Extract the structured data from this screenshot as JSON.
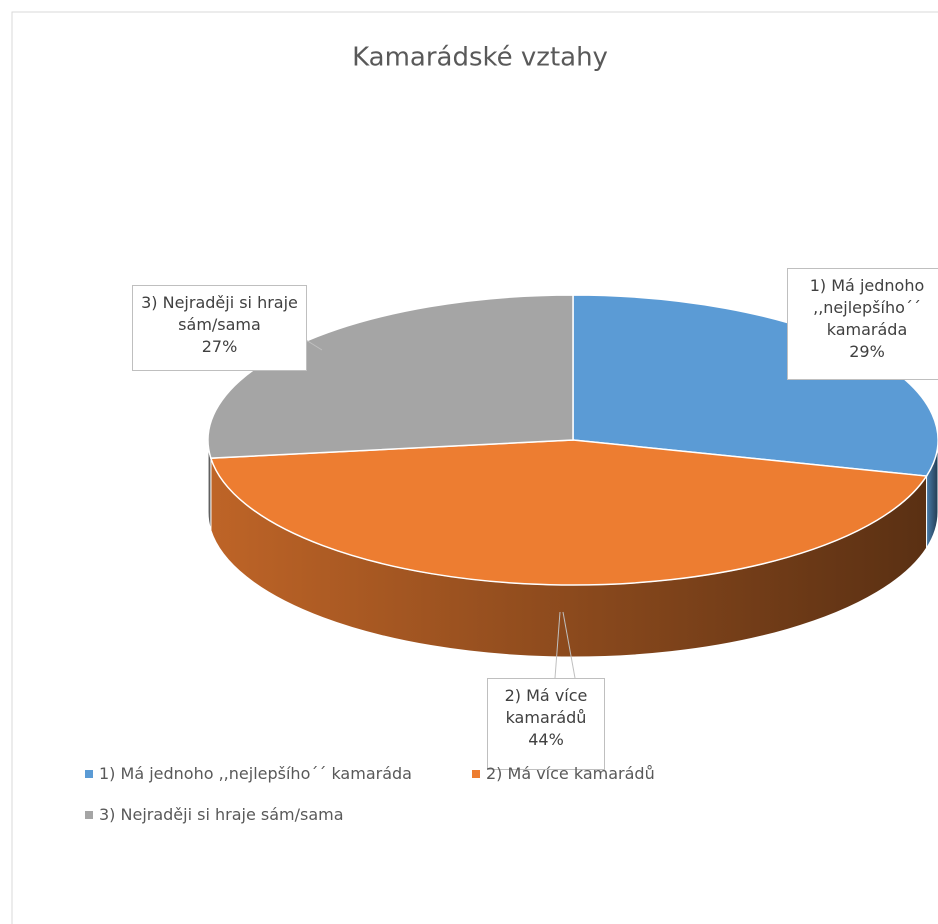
{
  "chart_data": {
    "type": "pie",
    "title": "Kamarádské vztahy",
    "categories": [
      "1) Má jednoho ,,nejlepšího´´ kamaráda",
      "2) Má více kamarádů",
      "3) Nejraději si hraje sám/sama"
    ],
    "values": [
      29,
      44,
      27
    ],
    "value_labels": [
      "29%",
      "44%",
      "27%"
    ],
    "colors": [
      "#5b9bd5",
      "#ed7d31",
      "#a5a5a5"
    ],
    "legend": "bottom"
  }
}
